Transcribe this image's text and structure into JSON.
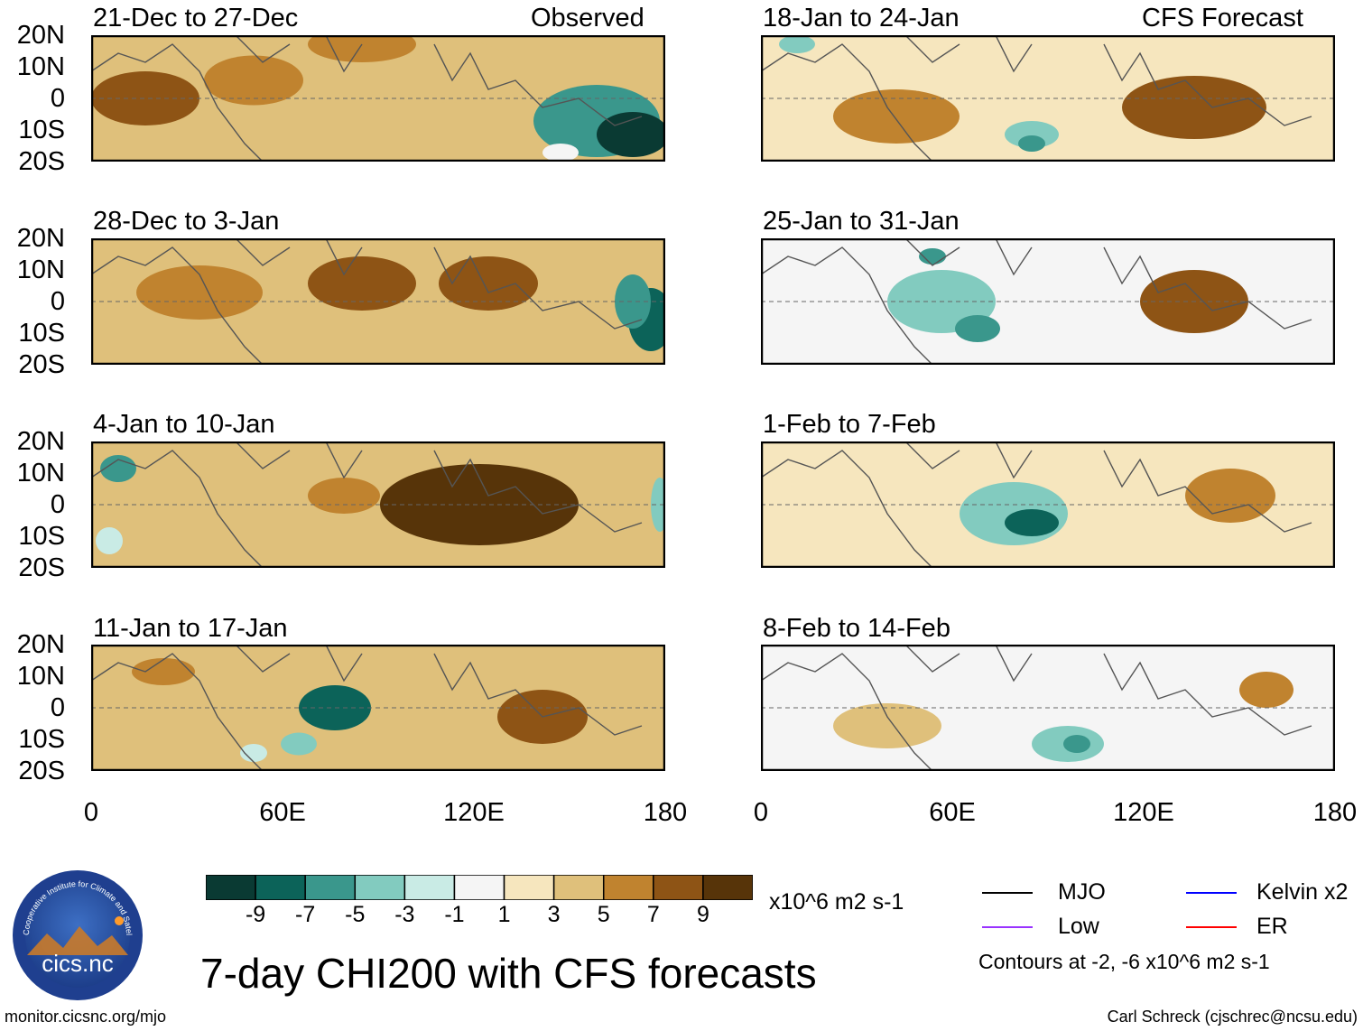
{
  "header": {
    "observed_label": "Observed",
    "forecast_label": "CFS Forecast"
  },
  "lat_ticks": [
    "20N",
    "10N",
    "0",
    "10S",
    "20S"
  ],
  "lon_ticks": [
    "0",
    "60E",
    "120E",
    "180"
  ],
  "panels": [
    {
      "title": "21-Dec to 27-Dec",
      "kind": "observed"
    },
    {
      "title": "28-Dec to 3-Jan",
      "kind": "observed"
    },
    {
      "title": "4-Jan to 10-Jan",
      "kind": "observed"
    },
    {
      "title": "11-Jan to 17-Jan",
      "kind": "observed"
    },
    {
      "title": "18-Jan to 24-Jan",
      "kind": "forecast"
    },
    {
      "title": "25-Jan to 31-Jan",
      "kind": "forecast"
    },
    {
      "title": "1-Feb to 7-Feb",
      "kind": "forecast"
    },
    {
      "title": "8-Feb to 14-Feb",
      "kind": "forecast"
    }
  ],
  "colorbar": {
    "labels": [
      "-9",
      "-7",
      "-5",
      "-3",
      "-1",
      "1",
      "3",
      "5",
      "7",
      "9"
    ],
    "colors": [
      "#0a3a33",
      "#0c6359",
      "#3a978c",
      "#82cbbf",
      "#c9ebe5",
      "#f5f5f5",
      "#f6e6be",
      "#dfc07b",
      "#c0832f",
      "#8e5415",
      "#573409"
    ],
    "units": "x10^6 m2 s-1"
  },
  "legend": {
    "items": [
      {
        "label": "MJO",
        "color": "#000000"
      },
      {
        "label": "Kelvin x2",
        "color": "#0000ff"
      },
      {
        "label": "Low",
        "color": "#9933ff"
      },
      {
        "label": "ER",
        "color": "#ff0000"
      }
    ],
    "contour_note": "Contours at -2, -6 x10^6 m2 s-1"
  },
  "title": "7-day CHI200 with CFS forecasts",
  "logo": {
    "text": "cics.nc",
    "ring_text": "Cooperative Institute for Climate and Satellites"
  },
  "footer": {
    "left": "monitor.cicsnc.org/mjo",
    "right": "Carl Schreck (cjschrec@ncsu.edu)"
  }
}
